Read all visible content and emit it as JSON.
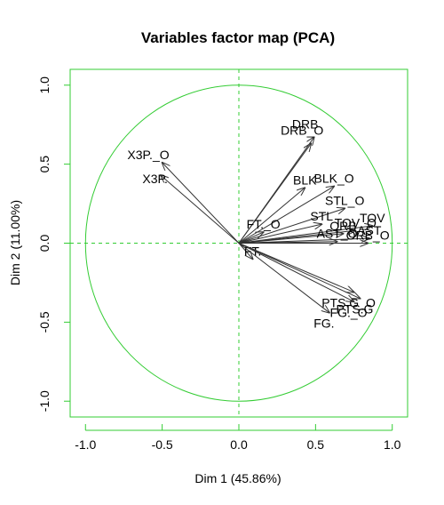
{
  "chart_data": {
    "type": "scatter",
    "title": "Variables factor map (PCA)",
    "xlabel": "Dim 1 (45.86%)",
    "ylabel": "Dim 2 (11.00%)",
    "xlim": [
      -1.1,
      1.1
    ],
    "ylim": [
      -1.1,
      1.1
    ],
    "x_ticks": [
      "-1.0",
      "-0.5",
      "0.0",
      "0.5",
      "1.0"
    ],
    "y_ticks": [
      "-1.0",
      "-0.5",
      "0.0",
      "0.5",
      "1.0"
    ],
    "unit_circle": true,
    "reference_lines": [
      0,
      0
    ],
    "colors": {
      "frame": "#33cc33",
      "circle": "#33cc33",
      "reference": "#33cc33",
      "arrow": "#333333",
      "text": "#000000"
    },
    "variables": [
      {
        "name": "DRB",
        "x": 0.49,
        "y": 0.67
      },
      {
        "name": "DRB_O",
        "x": 0.47,
        "y": 0.63
      },
      {
        "name": "X3P._O",
        "x": -0.5,
        "y": 0.51
      },
      {
        "name": "X3P.",
        "x": -0.51,
        "y": 0.43
      },
      {
        "name": "BLK_O",
        "x": 0.62,
        "y": 0.36
      },
      {
        "name": "BLK",
        "x": 0.43,
        "y": 0.35
      },
      {
        "name": "STL_O",
        "x": 0.69,
        "y": 0.22
      },
      {
        "name": "STL",
        "x": 0.54,
        "y": 0.12
      },
      {
        "name": "TOV",
        "x": 0.87,
        "y": 0.11
      },
      {
        "name": "TOV_O",
        "x": 0.76,
        "y": 0.08
      },
      {
        "name": "ORB",
        "x": 0.68,
        "y": 0.06
      },
      {
        "name": "FT._O",
        "x": 0.16,
        "y": 0.07
      },
      {
        "name": "AST",
        "x": 0.85,
        "y": 0.03
      },
      {
        "name": "AST_O",
        "x": 0.64,
        "y": 0.01
      },
      {
        "name": "ORB_O",
        "x": 0.84,
        "y": 0.0
      },
      {
        "name": "FT.",
        "x": 0.09,
        "y": -0.1
      },
      {
        "name": "PTS.G_O",
        "x": 0.75,
        "y": -0.31
      },
      {
        "name": "PTS.G",
        "x": 0.79,
        "y": -0.35
      },
      {
        "name": "FG._O",
        "x": 0.75,
        "y": -0.37
      },
      {
        "name": "FG.",
        "x": 0.59,
        "y": -0.44
      }
    ]
  }
}
